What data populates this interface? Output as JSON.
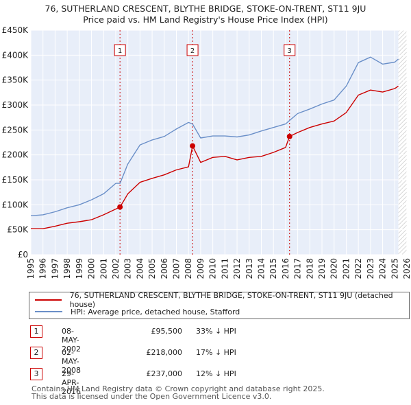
{
  "chart_data": {
    "type": "line",
    "title": "76, SUTHERLAND CRESCENT, BLYTHE BRIDGE, STOKE-ON-TRENT, ST11 9JU",
    "subtitle": "Price paid vs. HM Land Registry's House Price Index (HPI)",
    "xlabel": "",
    "ylabel": "",
    "xlim": [
      1995,
      2026
    ],
    "ylim": [
      0,
      450000
    ],
    "x_ticks": [
      1995,
      1996,
      1997,
      1998,
      1999,
      2000,
      2001,
      2002,
      2003,
      2004,
      2005,
      2006,
      2007,
      2008,
      2009,
      2010,
      2011,
      2012,
      2013,
      2014,
      2015,
      2016,
      2017,
      2018,
      2019,
      2020,
      2021,
      2022,
      2023,
      2024,
      2025,
      2026
    ],
    "y_ticks": [
      0,
      50000,
      100000,
      150000,
      200000,
      250000,
      300000,
      350000,
      400000,
      450000
    ],
    "y_tick_labels": [
      "£0",
      "£50K",
      "£100K",
      "£150K",
      "£200K",
      "£250K",
      "£300K",
      "£350K",
      "£400K",
      "£450K"
    ],
    "grid": true,
    "series": [
      {
        "name": "76, SUTHERLAND CRESCENT, BLYTHE BRIDGE, STOKE-ON-TRENT, ST11 9JU (detached house)",
        "color": "#cc0000",
        "points": [
          [
            1995.0,
            52000
          ],
          [
            1996.0,
            52000
          ],
          [
            1997.0,
            57000
          ],
          [
            1998.0,
            63000
          ],
          [
            1999.0,
            66000
          ],
          [
            2000.0,
            70000
          ],
          [
            2001.0,
            80000
          ],
          [
            2002.35,
            95500
          ],
          [
            2003.0,
            122000
          ],
          [
            2004.0,
            145000
          ],
          [
            2005.0,
            153000
          ],
          [
            2006.0,
            160000
          ],
          [
            2007.0,
            170000
          ],
          [
            2008.0,
            176000
          ],
          [
            2008.33,
            218000
          ],
          [
            2009.0,
            185000
          ],
          [
            2010.0,
            195000
          ],
          [
            2011.0,
            197000
          ],
          [
            2012.0,
            190000
          ],
          [
            2013.0,
            195000
          ],
          [
            2014.0,
            197000
          ],
          [
            2015.0,
            205000
          ],
          [
            2016.0,
            215000
          ],
          [
            2016.33,
            237000
          ],
          [
            2017.0,
            245000
          ],
          [
            2018.0,
            255000
          ],
          [
            2019.0,
            262000
          ],
          [
            2020.0,
            268000
          ],
          [
            2021.0,
            285000
          ],
          [
            2022.0,
            320000
          ],
          [
            2023.0,
            330000
          ],
          [
            2024.0,
            326000
          ],
          [
            2025.0,
            333000
          ],
          [
            2025.3,
            338000
          ]
        ]
      },
      {
        "name": "HPI: Average price, detached house, Stafford",
        "color": "#6a8fc8",
        "points": [
          [
            1995.0,
            78000
          ],
          [
            1996.0,
            80000
          ],
          [
            1997.0,
            86000
          ],
          [
            1998.0,
            94000
          ],
          [
            1999.0,
            100000
          ],
          [
            2000.0,
            110000
          ],
          [
            2001.0,
            122000
          ],
          [
            2002.0,
            143000
          ],
          [
            2002.35,
            143000
          ],
          [
            2003.0,
            182000
          ],
          [
            2004.0,
            220000
          ],
          [
            2005.0,
            230000
          ],
          [
            2006.0,
            237000
          ],
          [
            2007.0,
            252000
          ],
          [
            2008.0,
            265000
          ],
          [
            2008.33,
            262000
          ],
          [
            2009.0,
            234000
          ],
          [
            2010.0,
            238000
          ],
          [
            2011.0,
            238000
          ],
          [
            2012.0,
            236000
          ],
          [
            2013.0,
            240000
          ],
          [
            2014.0,
            248000
          ],
          [
            2015.0,
            255000
          ],
          [
            2016.0,
            262000
          ],
          [
            2016.33,
            269000
          ],
          [
            2017.0,
            283000
          ],
          [
            2018.0,
            292000
          ],
          [
            2019.0,
            302000
          ],
          [
            2020.0,
            310000
          ],
          [
            2021.0,
            338000
          ],
          [
            2022.0,
            385000
          ],
          [
            2023.0,
            396000
          ],
          [
            2024.0,
            382000
          ],
          [
            2025.0,
            386000
          ],
          [
            2025.3,
            392000
          ]
        ]
      }
    ],
    "markers": [
      {
        "label": "1",
        "x": 2002.35,
        "y": 95500
      },
      {
        "label": "2",
        "x": 2008.33,
        "y": 218000
      },
      {
        "label": "3",
        "x": 2016.33,
        "y": 237000
      }
    ],
    "shaded_region": {
      "x_start": 2025.3,
      "x_end": 2026
    }
  },
  "transactions": [
    {
      "num": "1",
      "date": "08-MAY-2002",
      "price": "£95,500",
      "hpi": "33% ↓ HPI"
    },
    {
      "num": "2",
      "date": "02-MAY-2008",
      "price": "£218,000",
      "hpi": "17% ↓ HPI"
    },
    {
      "num": "3",
      "date": "29-APR-2016",
      "price": "£237,000",
      "hpi": "12% ↓ HPI"
    }
  ],
  "legend": {
    "property_label": "76, SUTHERLAND CRESCENT, BLYTHE BRIDGE, STOKE-ON-TRENT, ST11 9JU (detached house)",
    "hpi_label": "HPI: Average price, detached house, Stafford"
  },
  "footer": {
    "line1": "Contains HM Land Registry data © Crown copyright and database right 2025.",
    "line2": "This data is licensed under the Open Government Licence v3.0."
  }
}
